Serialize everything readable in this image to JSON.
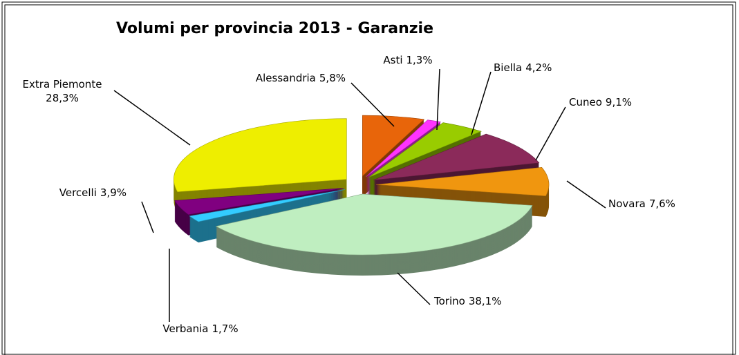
{
  "chart_data": {
    "type": "pie",
    "title": "Volumi per provincia 2013 - Garanzie",
    "categories": [
      "Alessandria",
      "Asti",
      "Biella",
      "Cuneo",
      "Novara",
      "Torino",
      "Verbania",
      "Vercelli",
      "Extra Piemonte"
    ],
    "values": [
      5.8,
      1.3,
      4.2,
      9.1,
      7.6,
      38.1,
      1.7,
      3.9,
      28.3
    ],
    "value_labels": [
      "5,8%",
      "1,3%",
      "4,2%",
      "9,1%",
      "7,6%",
      "38,1%",
      "1,7%",
      "3,9%",
      "28,3%"
    ],
    "colors": [
      "#e8650a",
      "#ff33ff",
      "#99cc00",
      "#8b2a5a",
      "#f0960f",
      "#bfeec0",
      "#33ccff",
      "#800080",
      "#eeee00"
    ]
  }
}
